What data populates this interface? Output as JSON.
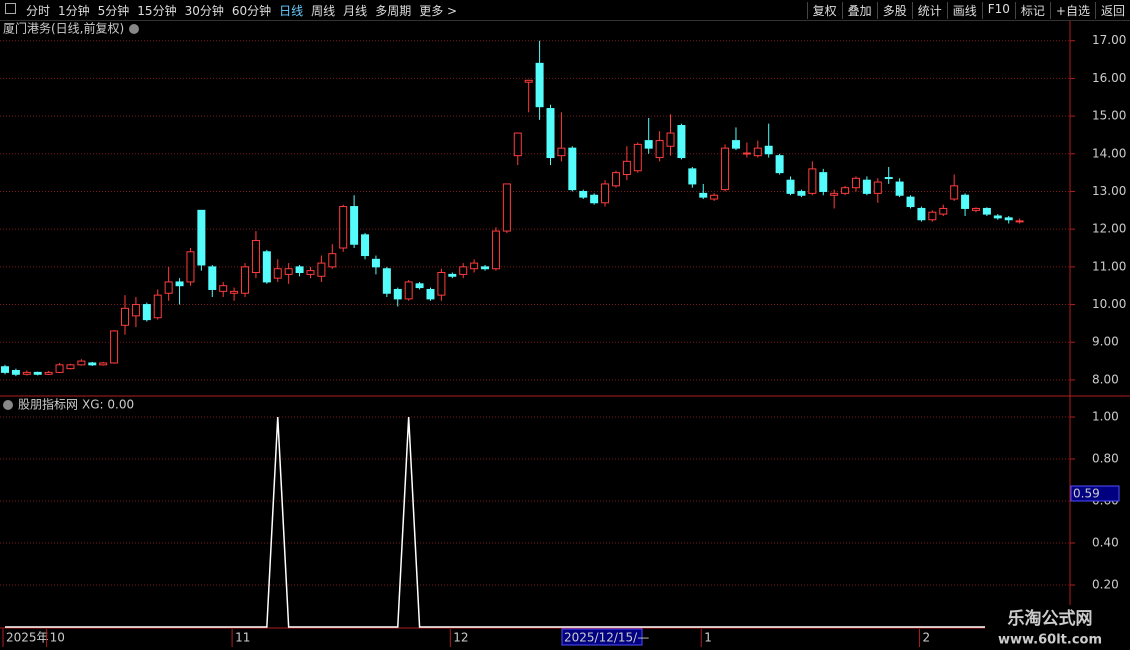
{
  "toolbar": {
    "left": [
      "分时",
      "1分钟",
      "5分钟",
      "15分钟",
      "30分钟",
      "60分钟",
      "日线",
      "周线",
      "月线",
      "多周期",
      "更多 >"
    ],
    "active": "日线",
    "right": [
      "复权",
      "叠加",
      "多股",
      "统计",
      "画线",
      "F10",
      "标记",
      "+自选",
      "返回"
    ]
  },
  "watermark": {
    "name": "乐淘公式网",
    "url": "www.60lt.com"
  },
  "chart_data": [
    {
      "type": "candlestick",
      "title": "厦门港务(日线,前复权)",
      "up_color": "#ff3c3c",
      "down_color": "#54fcfc",
      "grid": true,
      "categories": [
        "2025年",
        null,
        null,
        null,
        "10",
        null,
        null,
        null,
        null,
        null,
        null,
        null,
        null,
        null,
        null,
        null,
        null,
        null,
        null,
        null,
        null,
        "11",
        null,
        null,
        null,
        null,
        null,
        null,
        null,
        null,
        null,
        null,
        null,
        null,
        null,
        null,
        null,
        null,
        null,
        null,
        null,
        "12",
        null,
        null,
        null,
        null,
        null,
        null,
        null,
        null,
        null,
        null,
        null,
        null,
        null,
        null,
        null,
        null,
        null,
        null,
        null,
        null,
        null,
        null,
        "1",
        null,
        null,
        null,
        null,
        null,
        null,
        null,
        null,
        null,
        null,
        null,
        null,
        null,
        null,
        null,
        null,
        null,
        null,
        null,
        "2",
        null,
        null,
        null,
        null,
        null,
        null,
        null,
        null,
        null
      ],
      "cursor_date": "2025/12/15/—",
      "open": [
        8.35,
        8.25,
        8.15,
        8.2,
        8.15,
        8.2,
        8.3,
        8.4,
        8.45,
        8.4,
        8.45,
        9.45,
        9.7,
        10.0,
        9.65,
        10.3,
        10.6,
        10.6,
        12.5,
        11.0,
        10.35,
        10.3,
        10.3,
        10.85,
        11.4,
        10.7,
        10.8,
        11.0,
        10.8,
        10.75,
        11.0,
        11.5,
        12.6,
        11.85,
        11.2,
        10.95,
        10.4,
        10.15,
        10.55,
        10.4,
        10.25,
        10.8,
        10.8,
        10.95,
        11.0,
        10.95,
        11.95,
        13.95,
        15.9,
        16.4,
        15.2,
        13.95,
        14.15,
        13.0,
        12.9,
        12.7,
        13.15,
        13.45,
        13.55,
        14.35,
        13.9,
        14.2,
        14.75,
        13.6,
        12.95,
        12.8,
        13.05,
        14.35,
        14.0,
        13.95,
        14.2,
        13.95,
        13.3,
        13.0,
        12.95,
        13.5,
        12.9,
        12.95,
        13.1,
        13.3,
        12.95,
        13.37,
        13.25,
        12.85,
        12.55,
        12.25,
        12.4,
        12.8,
        12.9,
        12.5,
        12.55,
        12.35,
        12.3,
        12.2
      ],
      "high": [
        8.4,
        8.3,
        8.25,
        8.22,
        8.24,
        8.45,
        8.43,
        8.55,
        8.48,
        8.48,
        9.32,
        10.25,
        10.2,
        10.05,
        10.4,
        11.0,
        10.7,
        11.5,
        12.5,
        11.05,
        10.6,
        10.45,
        11.1,
        11.95,
        11.45,
        11.2,
        11.1,
        11.05,
        11.0,
        11.3,
        11.6,
        12.65,
        12.9,
        11.9,
        11.3,
        11.0,
        10.45,
        10.65,
        10.6,
        10.45,
        10.95,
        10.85,
        11.1,
        11.2,
        11.05,
        12.05,
        13.2,
        14.55,
        15.95,
        17.0,
        15.3,
        15.1,
        14.2,
        13.05,
        12.95,
        13.3,
        13.55,
        14.2,
        14.3,
        14.95,
        14.6,
        15.05,
        14.8,
        13.65,
        13.2,
        12.95,
        14.25,
        14.7,
        14.3,
        14.35,
        14.8,
        14.0,
        13.4,
        13.05,
        13.8,
        13.6,
        13.05,
        13.15,
        13.4,
        13.4,
        13.35,
        13.65,
        13.35,
        12.9,
        12.6,
        12.5,
        12.65,
        13.45,
        12.95,
        12.58,
        12.58,
        12.4,
        12.35,
        12.28
      ],
      "low": [
        8.15,
        8.1,
        8.12,
        8.12,
        8.13,
        8.18,
        8.28,
        8.38,
        8.37,
        8.38,
        8.43,
        9.2,
        9.4,
        9.55,
        9.6,
        10.1,
        10.0,
        10.5,
        10.9,
        10.2,
        10.2,
        10.1,
        10.2,
        10.7,
        10.55,
        10.6,
        10.55,
        10.75,
        10.7,
        10.6,
        10.95,
        11.4,
        11.5,
        11.2,
        10.8,
        10.2,
        9.95,
        10.1,
        10.4,
        10.1,
        10.1,
        10.7,
        10.7,
        10.85,
        10.9,
        10.9,
        11.9,
        13.7,
        15.1,
        14.9,
        13.7,
        13.8,
        13.0,
        12.8,
        12.65,
        12.6,
        13.1,
        13.3,
        13.5,
        14.0,
        13.8,
        13.95,
        13.85,
        13.1,
        12.8,
        12.75,
        13.0,
        14.1,
        13.9,
        13.9,
        13.9,
        13.45,
        12.9,
        12.85,
        12.9,
        12.9,
        12.55,
        12.9,
        13.0,
        12.9,
        12.7,
        13.2,
        12.85,
        12.55,
        12.2,
        12.2,
        12.35,
        12.75,
        12.35,
        12.45,
        12.35,
        12.25,
        12.15,
        12.15
      ],
      "close": [
        8.2,
        8.15,
        8.2,
        8.15,
        8.2,
        8.4,
        8.4,
        8.5,
        8.4,
        8.45,
        9.3,
        9.9,
        10.0,
        9.6,
        10.25,
        10.6,
        10.5,
        11.4,
        11.05,
        10.4,
        10.5,
        10.35,
        11.0,
        11.7,
        10.6,
        10.95,
        10.95,
        10.85,
        10.9,
        11.1,
        11.35,
        12.6,
        11.6,
        11.3,
        11.0,
        10.3,
        10.15,
        10.6,
        10.45,
        10.15,
        10.85,
        10.75,
        11.0,
        11.1,
        10.95,
        11.95,
        13.2,
        14.55,
        15.95,
        15.25,
        13.9,
        14.15,
        13.05,
        12.85,
        12.7,
        13.2,
        13.5,
        13.8,
        14.25,
        14.15,
        14.35,
        14.55,
        13.9,
        13.2,
        12.85,
        12.9,
        14.15,
        14.15,
        14.02,
        14.15,
        14.0,
        13.5,
        12.95,
        12.9,
        13.6,
        13.0,
        12.95,
        13.1,
        13.35,
        12.95,
        13.25,
        13.35,
        12.9,
        12.6,
        12.25,
        12.45,
        12.55,
        13.15,
        12.55,
        12.55,
        12.4,
        12.3,
        12.25,
        12.22
      ],
      "ylim": [
        7.6,
        17.55
      ],
      "yticks": [
        {
          "value": 8,
          "label": "8.00"
        },
        {
          "value": 9,
          "label": "9.00"
        },
        {
          "value": 10,
          "label": "10.00"
        },
        {
          "value": 11,
          "label": "11.00"
        },
        {
          "value": 12,
          "label": "12.00"
        },
        {
          "value": 13,
          "label": "13.00"
        },
        {
          "value": 14,
          "label": "14.00"
        },
        {
          "value": 15,
          "label": "15.00"
        },
        {
          "value": 16,
          "label": "16.00"
        },
        {
          "value": 17,
          "label": "17.00"
        }
      ]
    },
    {
      "type": "line",
      "title": "股朋指标网",
      "subtitle": "XG: 0.00",
      "color": "#ffffff",
      "grid": true,
      "cursor_value": "0.59",
      "values": [
        0,
        0,
        0,
        0,
        0,
        0,
        0,
        0,
        0,
        0,
        0,
        0,
        0,
        0,
        0,
        0,
        0,
        0,
        0,
        0,
        0,
        0,
        0,
        0,
        0,
        1,
        0,
        0,
        0,
        0,
        0,
        0,
        0,
        0,
        0,
        0,
        0,
        1,
        0,
        0,
        0,
        0,
        0,
        0,
        0,
        0,
        0,
        0,
        0,
        0,
        0,
        0,
        0,
        0,
        0,
        0,
        0,
        0,
        0,
        0,
        0,
        0,
        0,
        0,
        0,
        0,
        0,
        0,
        0,
        0,
        0,
        0,
        0,
        0,
        0,
        0,
        0,
        0,
        0,
        0,
        0,
        0,
        0,
        0,
        0,
        0,
        0,
        0,
        0,
        0,
        0,
        0,
        0,
        0
      ],
      "ylim": [
        0,
        1.1
      ],
      "yticks": [
        {
          "value": 0.2,
          "label": "0.20"
        },
        {
          "value": 0.4,
          "label": "0.40"
        },
        {
          "value": 0.6,
          "label": "0.60"
        },
        {
          "value": 0.8,
          "label": "0.80"
        },
        {
          "value": 1,
          "label": "1.00"
        }
      ]
    }
  ]
}
